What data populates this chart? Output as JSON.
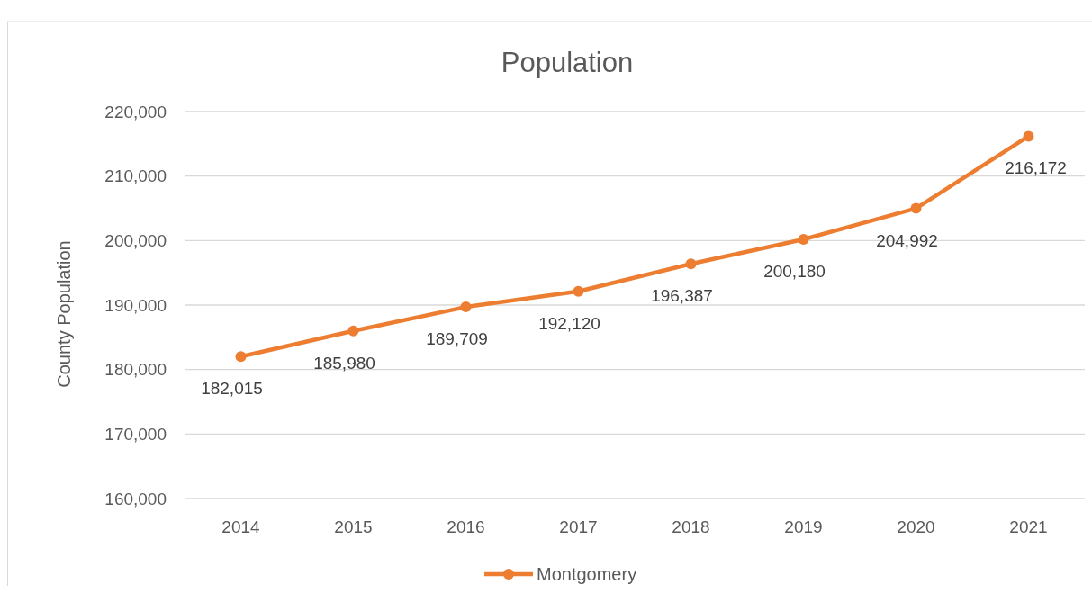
{
  "chart_data": {
    "type": "line",
    "title": "Population",
    "ylabel": "County Population",
    "categories": [
      "2014",
      "2015",
      "2016",
      "2017",
      "2018",
      "2019",
      "2020",
      "2021"
    ],
    "series": [
      {
        "name": "Montgomery",
        "color": "#ed7d31",
        "values": [
          182015,
          185980,
          189709,
          192120,
          196387,
          200180,
          204992,
          216172
        ],
        "value_labels": [
          "182,015",
          "185,980",
          "189,709",
          "192,120",
          "196,387",
          "200,180",
          "204,992",
          "216,172"
        ]
      }
    ],
    "ylim": [
      160000,
      220000
    ],
    "yticks": [
      {
        "value": 160000,
        "label": "160,000"
      },
      {
        "value": 170000,
        "label": "170,000"
      },
      {
        "value": 180000,
        "label": "180,000"
      },
      {
        "value": 190000,
        "label": "190,000"
      },
      {
        "value": 200000,
        "label": "200,000"
      },
      {
        "value": 210000,
        "label": "210,000"
      },
      {
        "value": 220000,
        "label": "220,000"
      }
    ],
    "grid": "y",
    "legend": "bottom",
    "marker": "circle",
    "line_style": "solid"
  }
}
